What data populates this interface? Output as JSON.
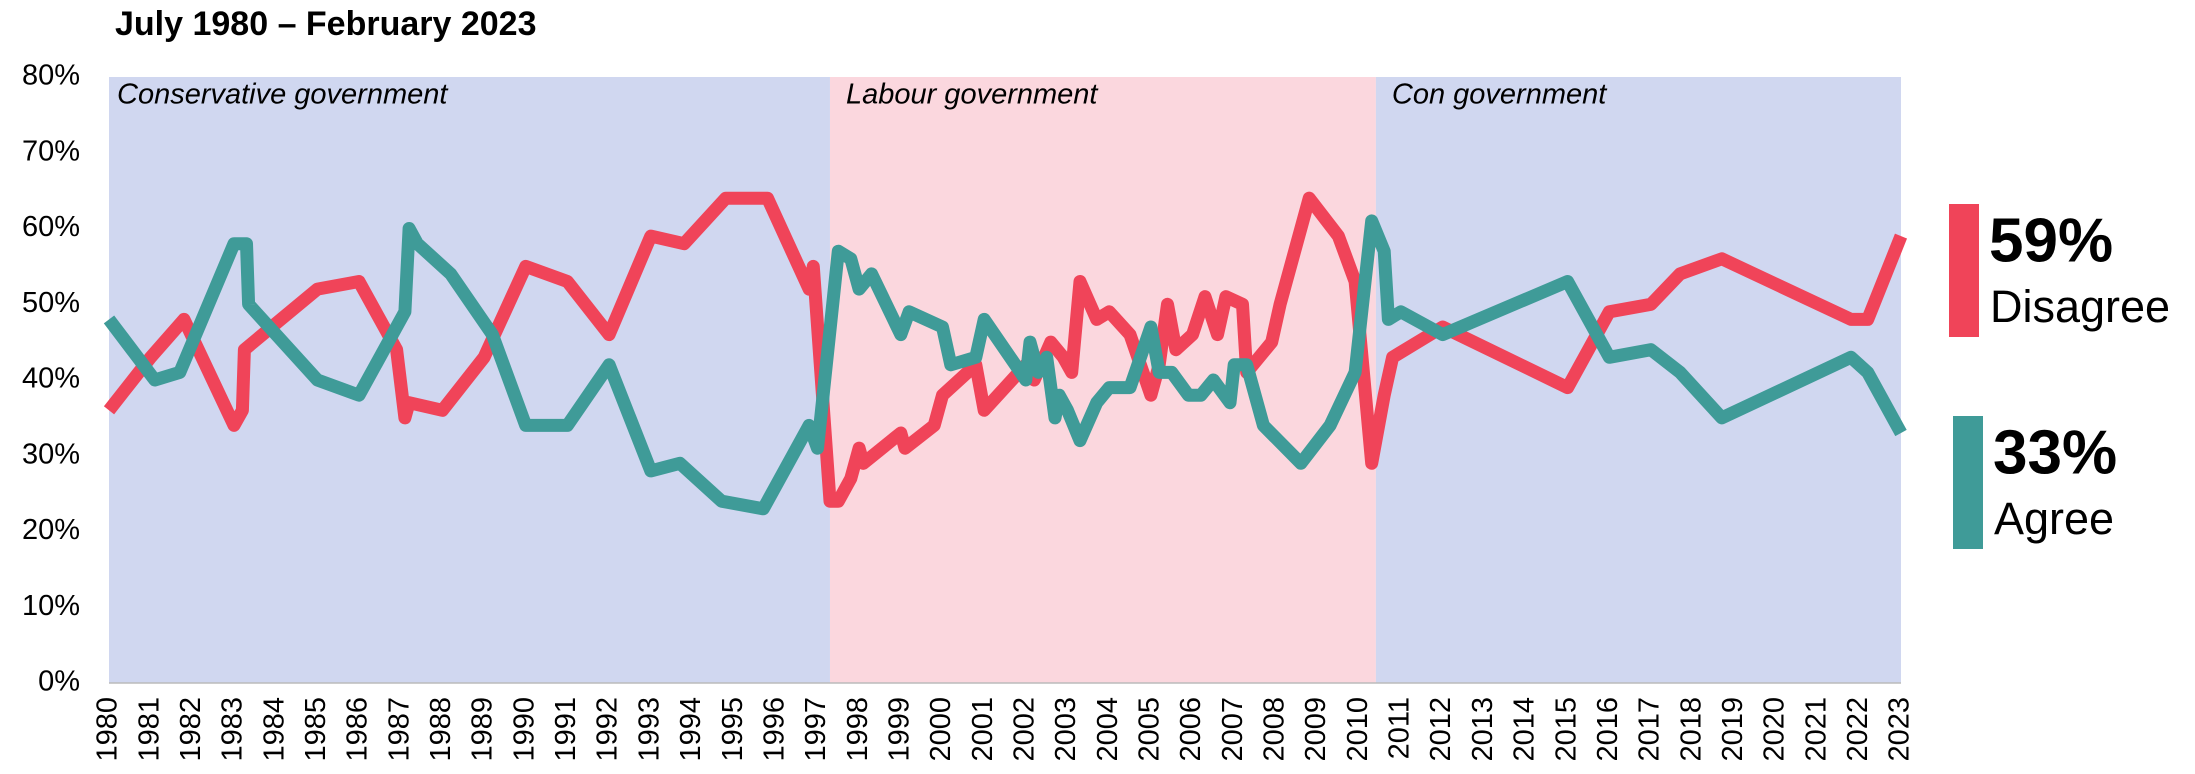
{
  "chart_data": {
    "type": "line",
    "title": "July 1980 – February 2023",
    "xlim": [
      1980,
      2023
    ],
    "xticks": [
      1980,
      1981,
      1982,
      1983,
      1984,
      1985,
      1986,
      1987,
      1988,
      1989,
      1990,
      1991,
      1992,
      1993,
      1994,
      1995,
      1996,
      1997,
      1998,
      1999,
      2000,
      2001,
      2002,
      2003,
      2004,
      2005,
      2006,
      2007,
      2008,
      2009,
      2010,
      2011,
      2012,
      2013,
      2014,
      2015,
      2016,
      2017,
      2018,
      2019,
      2020,
      2021,
      2022,
      2023
    ],
    "ylim": [
      0,
      80
    ],
    "yticks": [
      {
        "value": 0,
        "label": "0%"
      },
      {
        "value": 10,
        "label": "10%"
      },
      {
        "value": 20,
        "label": "20%"
      },
      {
        "value": 30,
        "label": "30%"
      },
      {
        "value": 40,
        "label": "40%"
      },
      {
        "value": 50,
        "label": "50%"
      },
      {
        "value": 60,
        "label": "60%"
      },
      {
        "value": 70,
        "label": "70%"
      },
      {
        "value": 80,
        "label": "80%"
      }
    ],
    "regions": [
      {
        "label": "Conservative government",
        "start": 1980,
        "end": 1997.3,
        "color": "#d0d7f0"
      },
      {
        "label": "Labour government",
        "start": 1997.3,
        "end": 2010.4,
        "color": "#fbd7de"
      },
      {
        "label": "Con government",
        "start": 2010.4,
        "end": 2023,
        "color": "#d0d7f0"
      }
    ],
    "series": [
      {
        "name": "Disagree",
        "color": "#f04459",
        "x": [
          1980,
          1981,
          1981.8,
          1983,
          1983.2,
          1983.25,
          1985,
          1986,
          1986.9,
          1987.1,
          1987.2,
          1988,
          1989,
          1990,
          1991,
          1992,
          1993,
          1993.8,
          1994.8,
          1995.8,
          1996.8,
          1996.9,
          1997.3,
          1997.5,
          1997.8,
          1998,
          1998.1,
          1999,
          1999.1,
          1999.8,
          2000,
          2000.8,
          2001,
          2002,
          2002.2,
          2002.6,
          2002.9,
          2003.1,
          2003.3,
          2003.7,
          2004,
          2004.5,
          2005,
          2005.2,
          2005.4,
          2005.6,
          2006,
          2006.3,
          2006.6,
          2006.8,
          2007.2,
          2007.3,
          2007.9,
          2008.1,
          2008.8,
          2009.5,
          2009.9,
          2010.3,
          2010.6,
          2010.8,
          2012,
          2015,
          2016,
          2017,
          2017.7,
          2018.7,
          2021.8,
          2022.2,
          2023
        ],
        "values": [
          36,
          43,
          48,
          34,
          36,
          44,
          52,
          53,
          44,
          35,
          37,
          36,
          43,
          55,
          53,
          46,
          59,
          58,
          64,
          64,
          52,
          55,
          24,
          24,
          27,
          31,
          29,
          33,
          31,
          34,
          38,
          42,
          36,
          42,
          40,
          45,
          43,
          41,
          53,
          48,
          49,
          46,
          38,
          42,
          50,
          44,
          46,
          51,
          46,
          51,
          50,
          41,
          45,
          50,
          64,
          59,
          53,
          29,
          38,
          43,
          47,
          39,
          49,
          50,
          54,
          56,
          48,
          48,
          59
        ],
        "value_labels": [
          null,
          null,
          null,
          null,
          null,
          null,
          null,
          null,
          null,
          null,
          null,
          null,
          null,
          null,
          null,
          null,
          null,
          null,
          null,
          null,
          null,
          null,
          null,
          null,
          null,
          null,
          null,
          null,
          null,
          null,
          null,
          null,
          null,
          null,
          null,
          null,
          null,
          null,
          null,
          null,
          null,
          null,
          null,
          null,
          null,
          null,
          null,
          null,
          null,
          null,
          null,
          null,
          null,
          null,
          null,
          null,
          null,
          null,
          null,
          null,
          null,
          null,
          null,
          null,
          null,
          null,
          null,
          null,
          "59%"
        ]
      },
      {
        "name": "Agree",
        "color": "#3f9b98",
        "x": [
          1980,
          1981.1,
          1981.7,
          1983,
          1983.3,
          1983.35,
          1985,
          1986,
          1987.1,
          1987.2,
          1987.4,
          1988.2,
          1989.2,
          1990,
          1991,
          1992,
          1993,
          1993.7,
          1994.7,
          1995.7,
          1996.8,
          1997,
          1997.5,
          1997.8,
          1998,
          1998.3,
          1999,
          1999.2,
          2000,
          2000.2,
          2000.8,
          2001,
          2002,
          2002.1,
          2002.3,
          2002.5,
          2002.7,
          2002.8,
          2003,
          2003.3,
          2003.7,
          2004,
          2004.5,
          2005,
          2005.2,
          2005.5,
          2005.9,
          2006.2,
          2006.5,
          2006.9,
          2007,
          2007.3,
          2007.7,
          2008.6,
          2009.3,
          2009.9,
          2010.3,
          2010.6,
          2010.7,
          2011,
          2012,
          2015,
          2016,
          2017,
          2017.7,
          2018.7,
          2021.8,
          2022.2,
          2023
        ],
        "values": [
          48,
          40,
          41,
          58,
          58,
          50,
          40,
          38,
          49,
          60,
          58,
          54,
          46,
          34,
          34,
          42,
          28,
          29,
          24,
          23,
          34,
          31,
          57,
          56,
          52,
          54,
          46,
          49,
          47,
          42,
          43,
          48,
          40,
          45,
          41,
          43,
          35,
          38,
          36,
          32,
          37,
          39,
          39,
          47,
          41,
          41,
          38,
          38,
          40,
          37,
          42,
          42,
          34,
          29,
          34,
          41,
          61,
          57,
          48,
          49,
          46,
          53,
          43,
          44,
          41,
          35,
          43,
          41,
          33
        ],
        "value_labels": [
          null,
          null,
          null,
          null,
          null,
          null,
          null,
          null,
          null,
          null,
          null,
          null,
          null,
          null,
          null,
          null,
          null,
          null,
          null,
          null,
          null,
          null,
          null,
          null,
          null,
          null,
          null,
          null,
          null,
          null,
          null,
          null,
          null,
          null,
          null,
          null,
          null,
          null,
          null,
          null,
          null,
          null,
          null,
          null,
          null,
          null,
          null,
          null,
          null,
          null,
          null,
          null,
          null,
          null,
          null,
          null,
          null,
          null,
          null,
          null,
          null,
          null,
          null,
          null,
          null,
          null,
          null,
          null,
          "33%"
        ]
      }
    ]
  }
}
